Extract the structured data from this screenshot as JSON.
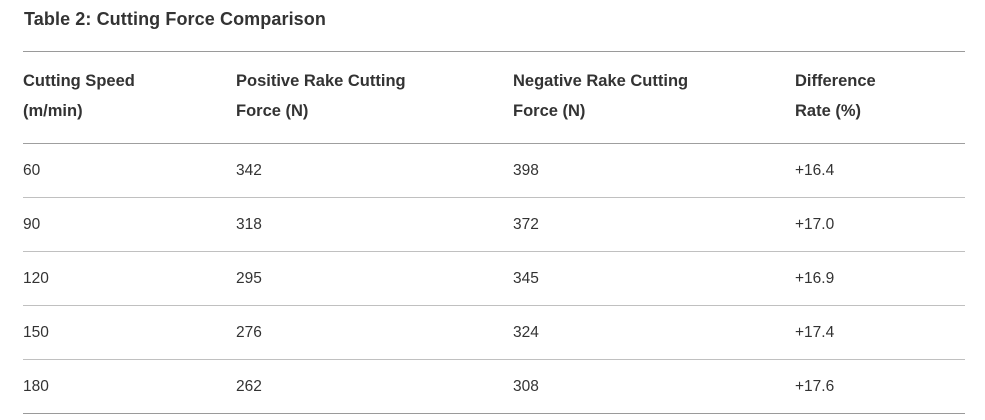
{
  "title": "Table 2: Cutting Force Comparison",
  "colors": {
    "text": "#333333",
    "border_strong": "#9a9a9a",
    "border_light": "#c0c0c0",
    "background": "#ffffff"
  },
  "table": {
    "headers": [
      "Cutting Speed\n(m/min)",
      "Positive Rake Cutting\nForce (N)",
      "Negative Rake Cutting\nForce (N)",
      "Difference\nRate (%)"
    ],
    "rows": [
      [
        "60",
        "342",
        "398",
        "+16.4"
      ],
      [
        "90",
        "318",
        "372",
        "+17.0"
      ],
      [
        "120",
        "295",
        "345",
        "+16.9"
      ],
      [
        "150",
        "276",
        "324",
        "+17.4"
      ],
      [
        "180",
        "262",
        "308",
        "+17.6"
      ]
    ]
  }
}
